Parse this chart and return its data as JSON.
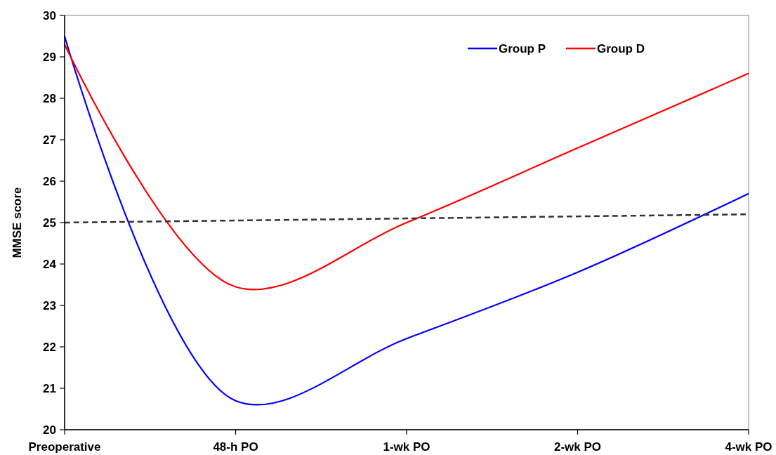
{
  "chart_data": {
    "type": "line",
    "ylabel": "MMSE score",
    "categories": [
      "Preoperative",
      "48-h PO",
      "1-wk PO",
      "2-wk PO",
      "4-wk PO"
    ],
    "series": [
      {
        "name": "Group P",
        "color": "#0000ff",
        "values": [
          29.5,
          20.7,
          22.2,
          23.8,
          25.7
        ]
      },
      {
        "name": "Group D",
        "color": "#ff0000",
        "values": [
          29.3,
          23.45,
          25.0,
          26.8,
          28.6
        ]
      },
      {
        "color": "#333333",
        "line_style": "dashed",
        "values": [
          25.0,
          25.05,
          25.1,
          25.15,
          25.2
        ]
      }
    ],
    "ylim": [
      20,
      30
    ],
    "yticks": [
      20,
      21,
      22,
      23,
      24,
      25,
      26,
      27,
      28,
      29,
      30
    ],
    "grid": false,
    "legend": "top right",
    "marker": "none",
    "line_style": "solid"
  }
}
